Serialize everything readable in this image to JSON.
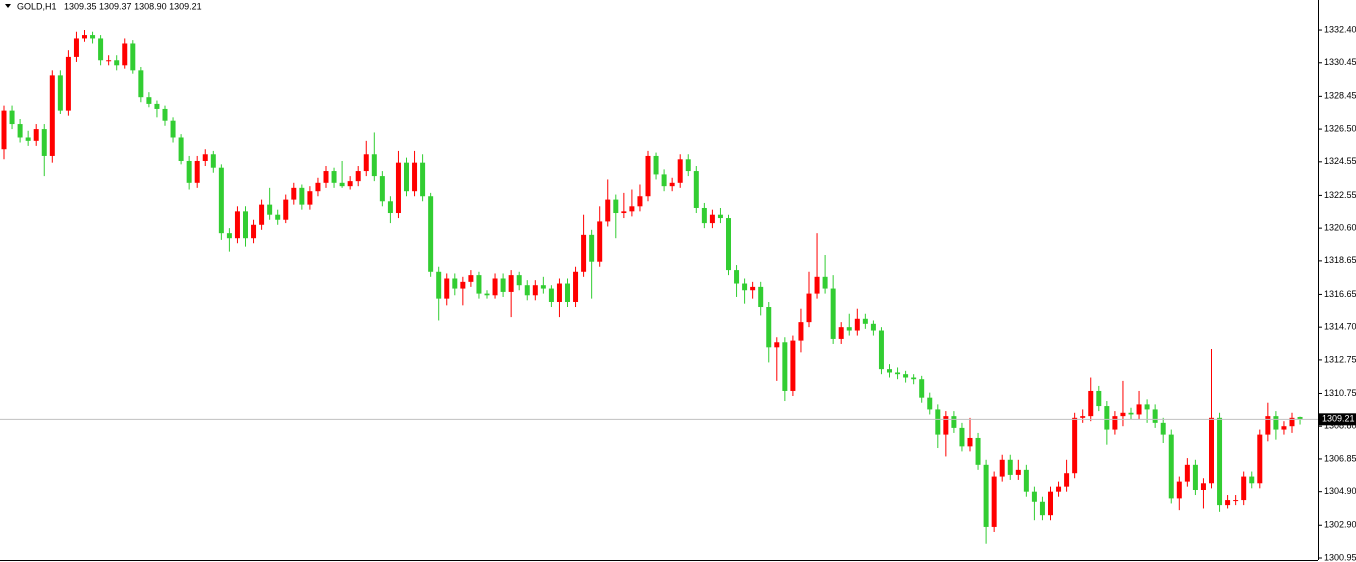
{
  "chart_data": {
    "type": "candlestick",
    "title": "GOLD,H1",
    "subtitle": "1309.35 1309.37 1308.90 1309.21",
    "up_color": "#ff0000",
    "down_color": "#32cd32",
    "ylim": [
      1300.83,
      1334.19
    ],
    "yticks": [
      {
        "value": 1332.4,
        "label": "1332.40"
      },
      1330.45,
      1328.45,
      {
        "value": 1326.5,
        "label": "1326.50"
      },
      1324.55,
      1322.55,
      {
        "value": 1320.6,
        "label": "1320.60"
      },
      1318.65,
      1316.65,
      {
        "value": 1314.7,
        "label": "1314.70"
      },
      1312.75,
      1310.75,
      {
        "value": 1308.8,
        "label": "1308.80"
      },
      1306.85,
      {
        "value": 1304.9,
        "label": "1304.90"
      },
      {
        "value": 1302.9,
        "label": "1302.90"
      },
      1300.95
    ],
    "price_line": 1309.21,
    "ohlc": [
      [
        1325.3,
        1327.9,
        1324.7,
        1327.6
      ],
      [
        1327.6,
        1327.9,
        1326.5,
        1326.8
      ],
      [
        1326.8,
        1327.1,
        1325.7,
        1326.0
      ],
      [
        1326.0,
        1326.4,
        1325.5,
        1325.8
      ],
      [
        1325.8,
        1326.8,
        1325.5,
        1326.5
      ],
      [
        1326.5,
        1326.8,
        1323.7,
        1324.9
      ],
      [
        1324.9,
        1330.0,
        1324.5,
        1329.7
      ],
      [
        1329.7,
        1330.0,
        1327.4,
        1327.6
      ],
      [
        1327.6,
        1331.2,
        1327.3,
        1330.8
      ],
      [
        1330.8,
        1332.3,
        1330.5,
        1331.9
      ],
      [
        1331.9,
        1332.4,
        1331.7,
        1332.1
      ],
      [
        1332.1,
        1332.3,
        1331.6,
        1331.9
      ],
      [
        1331.9,
        1332.1,
        1330.3,
        1330.6
      ],
      [
        1330.6,
        1330.9,
        1330.3,
        1330.6
      ],
      [
        1330.6,
        1330.9,
        1330.0,
        1330.3
      ],
      [
        1330.3,
        1331.9,
        1330.1,
        1331.6
      ],
      [
        1331.6,
        1331.8,
        1329.8,
        1330.0
      ],
      [
        1330.0,
        1330.2,
        1328.1,
        1328.4
      ],
      [
        1328.4,
        1328.7,
        1327.8,
        1328.0
      ],
      [
        1328.0,
        1328.2,
        1327.2,
        1327.7
      ],
      [
        1327.7,
        1327.9,
        1326.7,
        1327.0
      ],
      [
        1327.0,
        1327.2,
        1325.7,
        1326.0
      ],
      [
        1326.0,
        1326.2,
        1324.4,
        1324.6
      ],
      [
        1324.6,
        1324.9,
        1322.9,
        1323.3
      ],
      [
        1323.3,
        1324.9,
        1323.0,
        1324.6
      ],
      [
        1324.6,
        1325.3,
        1324.3,
        1325.0
      ],
      [
        1325.0,
        1325.2,
        1323.9,
        1324.2
      ],
      [
        1324.2,
        1324.4,
        1319.9,
        1320.3
      ],
      [
        1320.3,
        1320.6,
        1319.2,
        1320.0
      ],
      [
        1320.0,
        1321.9,
        1319.7,
        1321.6
      ],
      [
        1321.6,
        1321.9,
        1319.5,
        1320.0
      ],
      [
        1320.0,
        1321.1,
        1319.7,
        1320.8
      ],
      [
        1320.8,
        1322.3,
        1320.5,
        1322.0
      ],
      [
        1322.0,
        1323.0,
        1321.1,
        1321.4
      ],
      [
        1321.4,
        1321.7,
        1320.8,
        1321.1
      ],
      [
        1321.1,
        1322.6,
        1320.9,
        1322.3
      ],
      [
        1322.3,
        1323.3,
        1322.0,
        1323.0
      ],
      [
        1323.0,
        1323.2,
        1321.7,
        1322.0
      ],
      [
        1322.0,
        1323.1,
        1321.7,
        1322.8
      ],
      [
        1322.8,
        1323.6,
        1322.5,
        1323.3
      ],
      [
        1323.3,
        1324.3,
        1323.0,
        1324.0
      ],
      [
        1324.0,
        1324.2,
        1323.0,
        1323.3
      ],
      [
        1323.3,
        1324.6,
        1323.0,
        1323.1
      ],
      [
        1323.1,
        1323.7,
        1322.9,
        1323.4
      ],
      [
        1323.4,
        1324.3,
        1323.1,
        1324.0
      ],
      [
        1324.0,
        1325.8,
        1323.7,
        1325.0
      ],
      [
        1325.0,
        1326.3,
        1323.4,
        1323.7
      ],
      [
        1323.7,
        1324.0,
        1321.9,
        1322.2
      ],
      [
        1322.2,
        1322.5,
        1320.9,
        1321.5
      ],
      [
        1321.5,
        1325.2,
        1321.2,
        1324.5
      ],
      [
        1324.5,
        1324.8,
        1322.5,
        1322.8
      ],
      [
        1322.8,
        1325.2,
        1322.5,
        1324.5
      ],
      [
        1324.5,
        1325.0,
        1322.2,
        1322.5
      ],
      [
        1322.5,
        1322.7,
        1317.7,
        1318.0
      ],
      [
        1318.0,
        1318.3,
        1315.1,
        1316.4
      ],
      [
        1316.4,
        1317.9,
        1316.0,
        1317.6
      ],
      [
        1317.6,
        1317.9,
        1316.6,
        1317.0
      ],
      [
        1317.0,
        1317.7,
        1316.0,
        1317.4
      ],
      [
        1317.4,
        1318.1,
        1317.1,
        1317.8
      ],
      [
        1317.8,
        1318.0,
        1316.4,
        1316.7
      ],
      [
        1316.7,
        1316.9,
        1316.4,
        1316.6
      ],
      [
        1316.6,
        1317.9,
        1316.4,
        1317.6
      ],
      [
        1317.6,
        1317.9,
        1316.5,
        1316.8
      ],
      [
        1316.8,
        1318.1,
        1315.3,
        1317.8
      ],
      [
        1317.8,
        1318.0,
        1316.9,
        1317.2
      ],
      [
        1317.2,
        1317.5,
        1316.3,
        1316.6
      ],
      [
        1316.6,
        1317.5,
        1316.3,
        1317.2
      ],
      [
        1317.2,
        1317.7,
        1316.7,
        1317.0
      ],
      [
        1317.0,
        1317.2,
        1315.9,
        1316.2
      ],
      [
        1316.2,
        1317.6,
        1315.3,
        1317.3
      ],
      [
        1317.3,
        1317.6,
        1315.9,
        1316.2
      ],
      [
        1316.2,
        1318.3,
        1315.9,
        1318.0
      ],
      [
        1318.0,
        1321.4,
        1317.7,
        1320.2
      ],
      [
        1320.2,
        1320.5,
        1316.4,
        1318.6
      ],
      [
        1318.6,
        1321.9,
        1318.3,
        1321.0
      ],
      [
        1321.0,
        1323.5,
        1320.7,
        1322.3
      ],
      [
        1322.3,
        1322.6,
        1320.0,
        1321.5
      ],
      [
        1321.5,
        1322.7,
        1321.2,
        1321.6
      ],
      [
        1321.6,
        1322.9,
        1321.3,
        1321.9
      ],
      [
        1321.9,
        1323.2,
        1321.6,
        1322.5
      ],
      [
        1322.5,
        1325.2,
        1322.2,
        1324.9
      ],
      [
        1324.9,
        1325.1,
        1323.5,
        1323.8
      ],
      [
        1323.8,
        1324.1,
        1322.8,
        1323.1
      ],
      [
        1323.1,
        1323.6,
        1322.8,
        1323.3
      ],
      [
        1323.3,
        1325.0,
        1323.0,
        1324.7
      ],
      [
        1324.7,
        1325.0,
        1323.7,
        1324.0
      ],
      [
        1324.0,
        1324.3,
        1321.5,
        1321.8
      ],
      [
        1321.8,
        1322.1,
        1320.6,
        1320.9
      ],
      [
        1320.9,
        1321.7,
        1320.6,
        1321.4
      ],
      [
        1321.4,
        1321.8,
        1320.9,
        1321.2
      ],
      [
        1321.2,
        1321.4,
        1317.8,
        1318.1
      ],
      [
        1318.1,
        1318.4,
        1316.5,
        1317.3
      ],
      [
        1317.3,
        1317.6,
        1316.1,
        1316.9
      ],
      [
        1316.9,
        1317.4,
        1316.4,
        1317.1
      ],
      [
        1317.1,
        1317.4,
        1315.4,
        1315.9
      ],
      [
        1315.9,
        1316.2,
        1312.6,
        1313.5
      ],
      [
        1313.5,
        1314.1,
        1311.5,
        1313.8
      ],
      [
        1313.8,
        1314.1,
        1310.3,
        1310.9
      ],
      [
        1310.9,
        1314.2,
        1310.6,
        1313.9
      ],
      [
        1313.9,
        1315.8,
        1313.2,
        1315.0
      ],
      [
        1315.0,
        1318.0,
        1314.7,
        1316.7
      ],
      [
        1316.7,
        1320.3,
        1316.4,
        1317.7
      ],
      [
        1317.7,
        1319.0,
        1316.7,
        1317.0
      ],
      [
        1317.0,
        1317.8,
        1313.7,
        1314.0
      ],
      [
        1314.0,
        1315.0,
        1313.7,
        1314.7
      ],
      [
        1314.7,
        1315.5,
        1314.2,
        1314.5
      ],
      [
        1314.5,
        1315.8,
        1314.2,
        1315.2
      ],
      [
        1315.2,
        1315.5,
        1314.6,
        1314.9
      ],
      [
        1314.9,
        1315.1,
        1314.2,
        1314.5
      ],
      [
        1314.5,
        1314.7,
        1311.9,
        1312.2
      ],
      [
        1312.2,
        1312.5,
        1311.7,
        1312.0
      ],
      [
        1312.0,
        1312.3,
        1311.6,
        1311.9
      ],
      [
        1311.9,
        1312.1,
        1311.4,
        1311.7
      ],
      [
        1311.7,
        1311.9,
        1311.3,
        1311.6
      ],
      [
        1311.6,
        1311.8,
        1310.2,
        1310.5
      ],
      [
        1310.5,
        1310.8,
        1309.5,
        1309.8
      ],
      [
        1309.8,
        1310.1,
        1307.5,
        1308.3
      ],
      [
        1308.3,
        1309.7,
        1307.0,
        1309.4
      ],
      [
        1309.4,
        1309.7,
        1308.4,
        1308.7
      ],
      [
        1308.7,
        1309.0,
        1307.3,
        1307.6
      ],
      [
        1307.6,
        1309.3,
        1307.3,
        1308.1
      ],
      [
        1308.1,
        1308.4,
        1306.2,
        1306.5
      ],
      [
        1306.5,
        1306.8,
        1301.8,
        1302.8
      ],
      [
        1302.8,
        1306.1,
        1302.5,
        1305.8
      ],
      [
        1305.8,
        1307.1,
        1305.5,
        1306.8
      ],
      [
        1306.8,
        1307.1,
        1305.6,
        1305.9
      ],
      [
        1305.9,
        1306.8,
        1305.6,
        1306.2
      ],
      [
        1306.2,
        1306.5,
        1304.6,
        1304.9
      ],
      [
        1304.9,
        1305.2,
        1303.2,
        1304.3
      ],
      [
        1304.3,
        1304.6,
        1303.2,
        1303.5
      ],
      [
        1303.5,
        1305.2,
        1303.2,
        1304.9
      ],
      [
        1304.9,
        1305.5,
        1304.6,
        1305.2
      ],
      [
        1305.2,
        1306.8,
        1304.9,
        1306.0
      ],
      [
        1306.0,
        1309.6,
        1305.7,
        1309.3
      ],
      [
        1309.3,
        1309.8,
        1309.0,
        1309.4
      ],
      [
        1309.4,
        1311.7,
        1309.1,
        1310.9
      ],
      [
        1310.9,
        1311.2,
        1309.7,
        1310.0
      ],
      [
        1310.0,
        1310.3,
        1307.7,
        1308.6
      ],
      [
        1308.6,
        1309.7,
        1308.3,
        1309.4
      ],
      [
        1309.4,
        1311.5,
        1308.8,
        1309.6
      ],
      [
        1309.6,
        1309.9,
        1309.2,
        1309.5
      ],
      [
        1309.5,
        1310.9,
        1309.2,
        1310.1
      ],
      [
        1310.1,
        1310.4,
        1309.0,
        1309.8
      ],
      [
        1309.8,
        1310.1,
        1308.7,
        1309.0
      ],
      [
        1309.0,
        1309.3,
        1307.8,
        1308.3
      ],
      [
        1308.3,
        1308.6,
        1304.2,
        1304.5
      ],
      [
        1304.5,
        1305.8,
        1303.8,
        1305.5
      ],
      [
        1305.5,
        1306.9,
        1305.2,
        1306.5
      ],
      [
        1306.5,
        1306.8,
        1304.7,
        1305.0
      ],
      [
        1305.0,
        1305.7,
        1303.9,
        1305.4
      ],
      [
        1305.4,
        1313.4,
        1305.1,
        1309.3
      ],
      [
        1309.3,
        1309.6,
        1303.7,
        1304.1
      ],
      [
        1304.1,
        1304.7,
        1303.9,
        1304.4
      ],
      [
        1304.4,
        1304.7,
        1304.1,
        1304.4
      ],
      [
        1304.4,
        1306.1,
        1304.1,
        1305.8
      ],
      [
        1305.8,
        1306.1,
        1305.1,
        1305.4
      ],
      [
        1305.4,
        1308.6,
        1305.1,
        1308.3
      ],
      [
        1308.3,
        1310.2,
        1307.9,
        1309.4
      ],
      [
        1309.4,
        1309.7,
        1308.0,
        1308.6
      ],
      [
        1308.6,
        1309.1,
        1308.3,
        1308.8
      ],
      [
        1308.8,
        1309.6,
        1308.4,
        1309.3
      ],
      [
        1309.35,
        1309.37,
        1308.9,
        1309.21
      ]
    ]
  }
}
